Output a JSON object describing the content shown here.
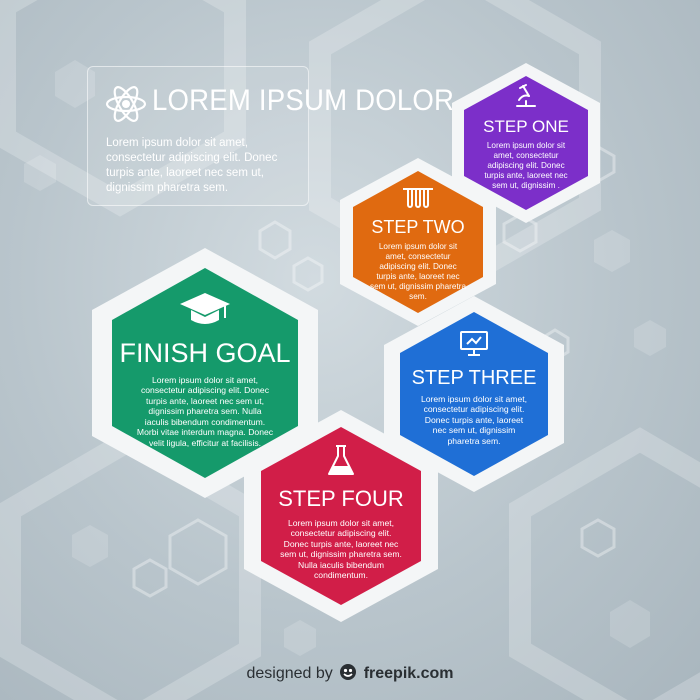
{
  "header": {
    "title": "LOREM IPSUM DOLOR",
    "description": "Lorem ipsum dolor sit amet, consectetur adipiscing elit. Donec turpis ante, laoreet nec sem ut, dignissim pharetra sem."
  },
  "steps": [
    {
      "id": "step-one",
      "title": "STEP ONE",
      "text": "Lorem ipsum dolor sit amet, consectetur adipiscing elit. Donec turpis ante, laoreet nec sem ut, dignissim .",
      "color": "#7c2fc9",
      "icon": "microscope-icon"
    },
    {
      "id": "step-two",
      "title": "STEP TWO",
      "text": "Lorem ipsum dolor sit amet, consectetur adipiscing elit. Donec turpis ante, laoreet nec sem ut, dignissim pharetra sem.",
      "color": "#e06a10",
      "icon": "test-tubes-icon"
    },
    {
      "id": "step-three",
      "title": "STEP THREE",
      "text": "Lorem ipsum dolor sit amet, consectetur adipiscing elit. Donec turpis ante, laoreet nec sem ut, dignissim pharetra sem.",
      "color": "#1f6fd6",
      "icon": "monitor-icon"
    },
    {
      "id": "step-four",
      "title": "STEP FOUR",
      "text": "Lorem ipsum dolor sit amet, consectetur adipiscing elit. Donec turpis ante, laoreet nec sem ut, dignissim pharetra sem. Nulla iaculis bibendum condimentum.",
      "color": "#d11e48",
      "icon": "flask-icon"
    },
    {
      "id": "finish-goal",
      "title": "FINISH GOAL",
      "text": "Lorem ipsum dolor sit amet, consectetur adipiscing elit. Donec turpis ante, laoreet nec sem ut, dignissim pharetra sem. Nulla iaculis bibendum condimentum. Morbi vitae interdum magna. Donec velit ligula, efficitur at facilisis.",
      "color": "#159a6b",
      "icon": "graduation-cap-icon"
    }
  ],
  "footer": {
    "prefix": "designed by",
    "brand": "freepik.com"
  }
}
